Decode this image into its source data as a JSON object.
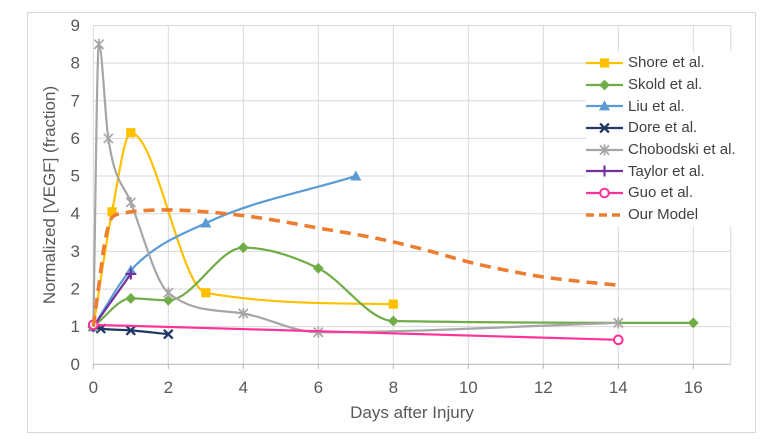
{
  "chart_data": {
    "type": "line",
    "title": "",
    "xlabel": "Days after Injury",
    "ylabel": "Normalized [VEGF] (fraction)",
    "xlim": [
      0,
      17
    ],
    "ylim": [
      0,
      9
    ],
    "xticks": [
      0,
      2,
      4,
      6,
      8,
      10,
      12,
      14,
      16
    ],
    "yticks": [
      0,
      1,
      2,
      3,
      4,
      5,
      6,
      7,
      8,
      9
    ],
    "grid": true,
    "legend_position": "inside-right",
    "background": "#FFFFFF",
    "border_color": "#D6D6D6",
    "grid_color": "#D9D9D9",
    "axis_line_color": "#B3B3B3",
    "tick_text_color": "#595959",
    "legend_text_color": "#404040",
    "series": [
      {
        "name": "Shore et al.",
        "color": "#FFC000",
        "marker": "square",
        "line": "solid",
        "width": 2.2,
        "points": [
          [
            0,
            1
          ],
          [
            0.5,
            4.05
          ],
          [
            1,
            6.15
          ],
          [
            3,
            1.9
          ],
          [
            8,
            1.6
          ]
        ]
      },
      {
        "name": "Skold et al.",
        "color": "#70AD47",
        "marker": "diamond",
        "line": "solid",
        "width": 2.2,
        "points": [
          [
            0,
            1
          ],
          [
            1,
            1.75
          ],
          [
            2,
            1.7
          ],
          [
            4,
            3.1
          ],
          [
            6,
            2.55
          ],
          [
            8,
            1.15
          ],
          [
            16,
            1.1
          ]
        ]
      },
      {
        "name": "Liu et al.",
        "color": "#5B9BD5",
        "marker": "triangle-up",
        "line": "solid",
        "width": 2.2,
        "points": [
          [
            0,
            1
          ],
          [
            1,
            2.5
          ],
          [
            3,
            3.75
          ],
          [
            7,
            5.0
          ]
        ]
      },
      {
        "name": "Dore et al.",
        "color": "#1F3864",
        "marker": "x",
        "line": "solid",
        "width": 2.2,
        "points": [
          [
            0,
            1
          ],
          [
            0.2,
            0.95
          ],
          [
            1,
            0.9
          ],
          [
            2,
            0.8
          ]
        ]
      },
      {
        "name": "Chobodski et al.",
        "color": "#A6A6A6",
        "marker": "asterisk",
        "line": "solid",
        "width": 2.2,
        "points": [
          [
            0,
            1
          ],
          [
            0.15,
            8.5
          ],
          [
            0.4,
            6.0
          ],
          [
            1,
            4.3
          ],
          [
            2,
            1.9
          ],
          [
            4,
            1.35
          ],
          [
            6,
            0.85
          ],
          [
            14,
            1.1
          ]
        ]
      },
      {
        "name": "Taylor et al.",
        "color": "#7030A0",
        "marker": "plus",
        "line": "solid",
        "width": 2.2,
        "points": [
          [
            0,
            1
          ],
          [
            1,
            2.4
          ]
        ]
      },
      {
        "name": "Guo et al.",
        "color": "#FF3399",
        "marker": "circle-open",
        "line": "solid",
        "width": 2.2,
        "points": [
          [
            0,
            1.05
          ],
          [
            14,
            0.65
          ]
        ]
      },
      {
        "name": "Our Model",
        "color": "#ED7D31",
        "marker": "none",
        "line": "dashed",
        "width": 3.6,
        "points": [
          [
            0,
            1
          ],
          [
            0.15,
            2.1
          ],
          [
            0.3,
            3.2
          ],
          [
            0.5,
            3.9
          ],
          [
            0.75,
            4.0
          ],
          [
            1,
            4.05
          ],
          [
            2,
            4.1
          ],
          [
            3,
            4.05
          ],
          [
            4,
            3.95
          ],
          [
            5,
            3.8
          ],
          [
            6,
            3.62
          ],
          [
            7,
            3.45
          ],
          [
            8,
            3.25
          ],
          [
            9,
            3.0
          ],
          [
            10,
            2.72
          ],
          [
            11,
            2.5
          ],
          [
            12,
            2.32
          ],
          [
            13,
            2.2
          ],
          [
            14,
            2.1
          ]
        ]
      }
    ]
  }
}
